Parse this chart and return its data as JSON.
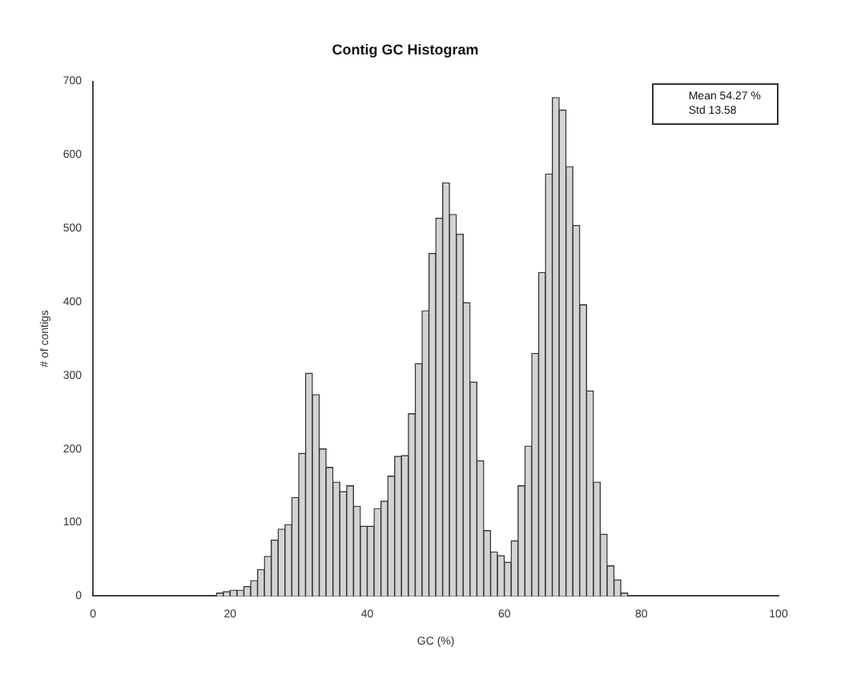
{
  "chart_data": {
    "type": "histogram",
    "title": "Contig GC Histogram",
    "xlabel": "GC (%)",
    "ylabel": "# of contigs",
    "annotations": [
      "Mean 54.27 %",
      "Std 13.58"
    ],
    "bins": [
      0,
      1,
      2,
      3,
      4,
      5,
      6,
      7,
      8,
      9,
      10,
      11,
      12,
      13,
      14,
      15,
      16,
      17,
      18,
      19,
      20,
      21,
      22,
      23,
      24,
      25,
      26,
      27,
      28,
      29,
      30,
      31,
      32,
      33,
      34,
      35,
      36,
      37,
      38,
      39,
      40,
      41,
      42,
      43,
      44,
      45,
      46,
      47,
      48,
      49,
      50,
      51,
      52,
      53,
      54,
      55,
      56,
      57,
      58,
      59,
      60,
      61,
      62,
      63,
      64,
      65,
      66,
      67,
      68,
      69,
      70,
      71,
      72,
      73,
      74,
      75,
      76,
      77,
      78,
      79,
      80,
      81,
      82,
      83,
      84,
      85,
      86,
      87,
      88,
      89,
      90,
      91,
      92,
      93,
      94,
      95,
      96,
      97,
      98,
      99,
      100
    ],
    "values": [
      0,
      0,
      0,
      0,
      0,
      0,
      0,
      0,
      0,
      0,
      0,
      0,
      0,
      0,
      null,
      null,
      null,
      null,
      4,
      6,
      8,
      8,
      13,
      21,
      36,
      54,
      76,
      91,
      97,
      134,
      194,
      303,
      274,
      200,
      175,
      155,
      142,
      150,
      122,
      95,
      95,
      119,
      129,
      163,
      190,
      191,
      248,
      316,
      388,
      466,
      514,
      562,
      519,
      492,
      399,
      291,
      184,
      89,
      60,
      55,
      46,
      75,
      150,
      204,
      330,
      440,
      574,
      678,
      661,
      584,
      504,
      396,
      279,
      155,
      84,
      41,
      22,
      4,
      null,
      0,
      0,
      0,
      0,
      0,
      0,
      0,
      0,
      0,
      0,
      0,
      0,
      0,
      0,
      0,
      0,
      0,
      0,
      0,
      0,
      0
    ],
    "color": "#d3d3d3",
    "xlim": [
      0,
      100
    ],
    "xticks": [
      0,
      20,
      40,
      60,
      80,
      100
    ],
    "ylim": [
      0,
      700
    ],
    "yticks": [
      0,
      100,
      200,
      300,
      400,
      500,
      600,
      700
    ],
    "grid": false,
    "legend": false
  }
}
